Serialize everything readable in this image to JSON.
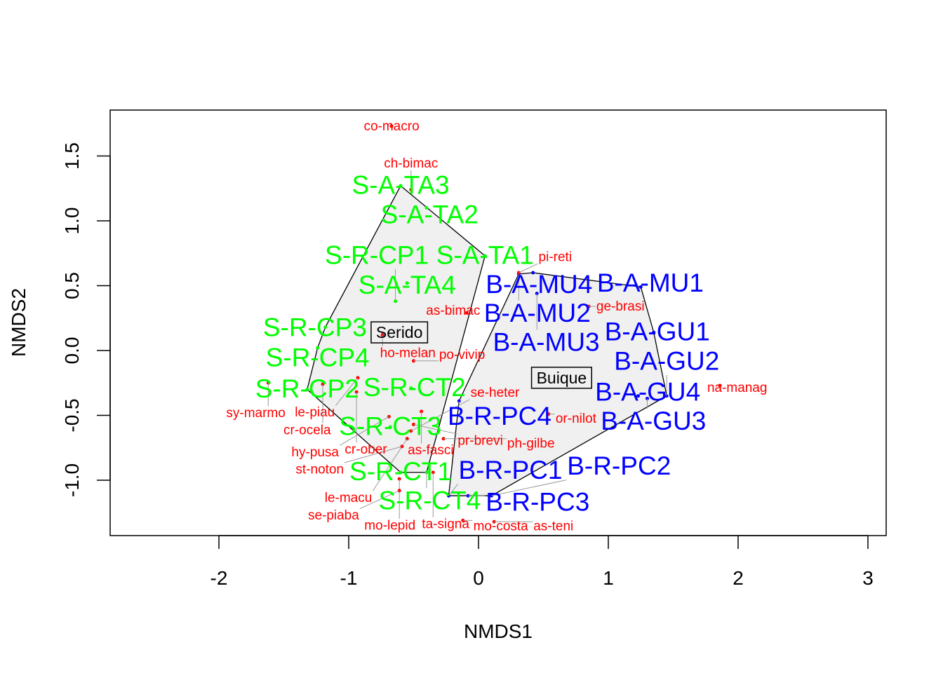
{
  "chart_data": {
    "type": "scatter",
    "title": "",
    "xlabel": "NMDS1",
    "ylabel": "NMDS2",
    "xlim": [
      -2.5,
      3.15
    ],
    "ylim": [
      -1.42,
      1.85
    ],
    "xticks": [
      -2,
      -1,
      0,
      1,
      2,
      3
    ],
    "yticks": [
      -1.0,
      -0.5,
      0.0,
      0.5,
      1.0,
      1.5
    ],
    "xtick_labels": [
      "-2",
      "-1",
      "0",
      "1",
      "2",
      "3"
    ],
    "ytick_labels": [
      "-1.0",
      "-0.5",
      "0.0",
      "0.5",
      "1.0",
      "1.5"
    ],
    "colors": {
      "serido": "#00ff00",
      "buique": "#0000ff",
      "species": "#ff0000",
      "hull_fill": "#f0f0f0"
    },
    "groups": [
      {
        "name": "Serido",
        "label_pos": [
          -0.61,
          0.14
        ],
        "color": "#00ff00"
      },
      {
        "name": "Buique",
        "label_pos": [
          0.64,
          -0.21
        ],
        "color": "#0000ff"
      }
    ],
    "sites": [
      {
        "label": "S-A-TA3",
        "group": "Serido",
        "x": -0.6,
        "y": 1.27
      },
      {
        "label": "S-A-TA2",
        "group": "Serido",
        "x": -0.4,
        "y": 1.1
      },
      {
        "label": "S-A-TA1",
        "group": "Serido",
        "x": 0.05,
        "y": 0.73
      },
      {
        "label": "S-A-TA4",
        "group": "Serido",
        "x": -0.55,
        "y": 0.52
      },
      {
        "label": "S-R-CP1",
        "group": "Serido",
        "x": -0.64,
        "y": 0.38
      },
      {
        "label": "S-R-CP3",
        "group": "Serido",
        "x": -1.18,
        "y": 0.18
      },
      {
        "label": "S-R-CP4",
        "group": "Serido",
        "x": -1.24,
        "y": 0.02
      },
      {
        "label": "S-R-CP2",
        "group": "Serido",
        "x": -1.32,
        "y": -0.3
      },
      {
        "label": "S-R-CT2",
        "group": "Serido",
        "x": -0.52,
        "y": -0.29
      },
      {
        "label": "S-R-CT3",
        "group": "Serido",
        "x": -0.68,
        "y": -0.59
      },
      {
        "label": "S-R-CT1",
        "group": "Serido",
        "x": -0.6,
        "y": -0.94
      },
      {
        "label": "S-R-CT4",
        "group": "Serido",
        "x": -0.4,
        "y": -0.94
      },
      {
        "label": "B-R-PC4",
        "group": "Buique",
        "x": -0.15,
        "y": -0.39
      },
      {
        "label": "B-R-PC1",
        "group": "Buique",
        "x": -0.23,
        "y": -1.12
      },
      {
        "label": "B-R-PC3",
        "group": "Buique",
        "x": -0.08,
        "y": -1.12
      },
      {
        "label": "B-R-PC2",
        "group": "Buique",
        "x": 0.1,
        "y": -1.12
      },
      {
        "label": "B-A-MU4",
        "group": "Buique",
        "x": 0.42,
        "y": 0.6
      },
      {
        "label": "B-A-MU2",
        "group": "Buique",
        "x": 0.31,
        "y": 0.59
      },
      {
        "label": "B-A-MU3",
        "group": "Buique",
        "x": 0.45,
        "y": 0.44
      },
      {
        "label": "B-A-MU1",
        "group": "Buique",
        "x": 1.25,
        "y": 0.49
      },
      {
        "label": "B-A-GU1",
        "group": "Buique",
        "x": 1.35,
        "y": 0.14
      },
      {
        "label": "B-A-GU4",
        "group": "Buique",
        "x": 1.23,
        "y": -0.35
      },
      {
        "label": "B-A-GU3",
        "group": "Buique",
        "x": 1.3,
        "y": -0.37
      },
      {
        "label": "B-A-GU2",
        "group": "Buique",
        "x": 1.45,
        "y": -0.35
      }
    ],
    "species": [
      {
        "label": "co-macro",
        "x": -0.67,
        "y": 1.73
      },
      {
        "label": "ch-bimac",
        "x": -0.52,
        "y": 1.24
      },
      {
        "label": "as-bimac",
        "x": -0.09,
        "y": 0.29
      },
      {
        "label": "ge-brasi",
        "x": 0.85,
        "y": 0.34
      },
      {
        "label": "ho-melan",
        "x": -0.74,
        "y": 0.12
      },
      {
        "label": "po-vivip",
        "x": -0.5,
        "y": -0.08
      },
      {
        "label": "le-piau",
        "x": -0.93,
        "y": -0.21
      },
      {
        "label": "sy-marmo",
        "x": -1.62,
        "y": -0.25
      },
      {
        "label": "cr-ocela",
        "x": -1.2,
        "y": -0.26
      },
      {
        "label": "cr-ober",
        "x": -0.94,
        "y": -0.32
      },
      {
        "label": "as-fasci",
        "x": -0.44,
        "y": -0.47
      },
      {
        "label": "hy-pusa",
        "x": -0.69,
        "y": -0.51
      },
      {
        "label": "pr-brevi",
        "x": -0.5,
        "y": -0.57
      },
      {
        "label": "se-heter",
        "x": -0.52,
        "y": -0.62
      },
      {
        "label": "le-macu",
        "x": -0.55,
        "y": -0.68
      },
      {
        "label": "ph-gilbe",
        "x": -0.27,
        "y": -0.68
      },
      {
        "label": "st-noton",
        "x": -0.59,
        "y": -0.74
      },
      {
        "label": "na-manag",
        "x": 1.86,
        "y": -0.27
      },
      {
        "label": "or-nilot",
        "x": 0.54,
        "y": -0.49
      },
      {
        "label": "ta-signa",
        "x": -0.35,
        "y": -0.94
      },
      {
        "label": "mo-lepid",
        "x": -0.61,
        "y": -0.99
      },
      {
        "label": "se-piaba",
        "x": -0.61,
        "y": -1.08
      },
      {
        "label": "pi-reti",
        "x": 0.31,
        "y": 0.6
      },
      {
        "label": "mo-costa",
        "x": -0.12,
        "y": -1.31
      },
      {
        "label": "as-teni",
        "x": 0.12,
        "y": -1.32
      }
    ]
  }
}
